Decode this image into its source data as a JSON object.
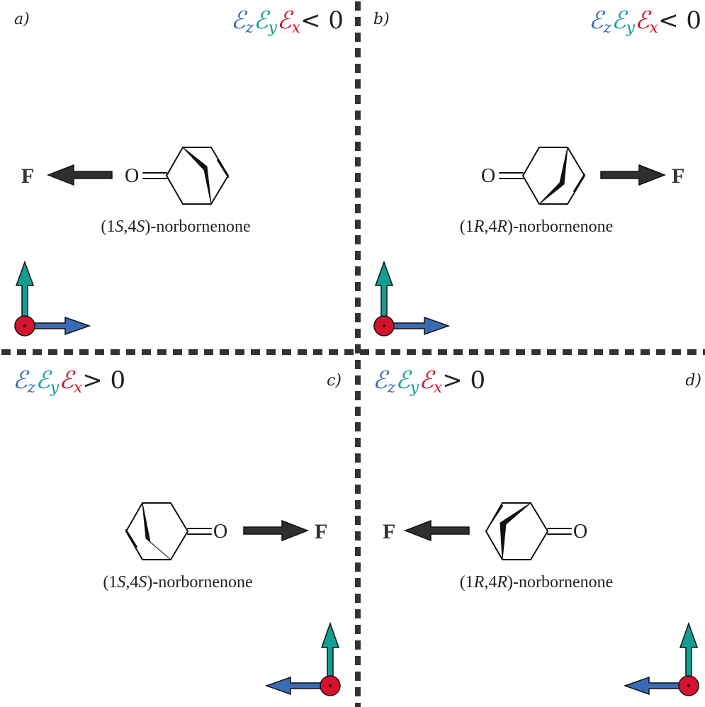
{
  "colors": {
    "z_blue": "#3a6bb5",
    "y_teal": "#139e93",
    "x_red": "#d6122e",
    "divider": "#333333",
    "arrow_fill": "#2f2f2f"
  },
  "condition_symbol": {
    "Ez": "ℰ",
    "z": "z",
    "Ey": "ℰ",
    "y": "y",
    "Ex": "ℰ",
    "x": "x"
  },
  "panels": [
    {
      "label": "a)",
      "condition_rest": "< 0",
      "molecule": "(1S,4S)-norbornenone",
      "name_pre": "(1",
      "s1": "S",
      "mid": ",4",
      "s2": "S",
      "name_post": ")-norbornenone",
      "oxygen": "O",
      "force": "F"
    },
    {
      "label": "b)",
      "condition_rest": "< 0",
      "molecule": "(1R,4R)-norbornenone",
      "name_pre": "(1",
      "s1": "R",
      "mid": ",4",
      "s2": "R",
      "name_post": ")-norbornenone",
      "oxygen": "O",
      "force": "F"
    },
    {
      "label": "c)",
      "condition_rest": "> 0",
      "molecule": "(1S,4S)-norbornenone",
      "name_pre": "(1",
      "s1": "S",
      "mid": ",4",
      "s2": "S",
      "name_post": ")-norbornenone",
      "oxygen": "O",
      "force": "F"
    },
    {
      "label": "d)",
      "condition_rest": "> 0",
      "molecule": "(1R,4R)-norbornenone",
      "name_pre": "(1",
      "s1": "R",
      "mid": ",4",
      "s2": "R",
      "name_post": ")-norbornenone",
      "oxygen": "O",
      "force": "F"
    }
  ]
}
